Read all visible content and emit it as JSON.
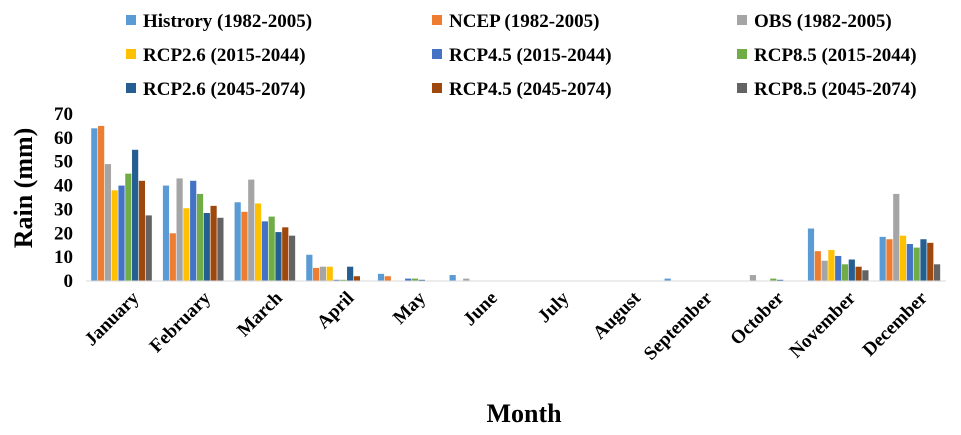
{
  "chart_data": {
    "type": "bar",
    "xlabel": "Month",
    "ylabel": "Rain (mm)",
    "ylim": [
      0,
      70
    ],
    "yticks": [
      "0",
      "10",
      "20",
      "30",
      "40",
      "50",
      "60",
      "70"
    ],
    "grid": false,
    "legend_position": "top",
    "categories": [
      "January",
      "February",
      "March",
      "April",
      "May",
      "June",
      "July",
      "August",
      "September",
      "October",
      "November",
      "December"
    ],
    "series": [
      {
        "name": "Histrory (1982-2005)",
        "color": "#5b9bd5",
        "values": [
          64,
          40,
          33,
          11,
          3,
          2.5,
          0,
          0,
          1,
          0,
          22,
          18.5
        ]
      },
      {
        "name": "NCEP (1982-2005)",
        "color": "#ed7d31",
        "values": [
          65,
          20,
          29,
          5.5,
          2,
          0,
          0,
          0,
          0,
          0,
          12.5,
          17.5
        ]
      },
      {
        "name": "OBS (1982-2005)",
        "color": "#a5a5a5",
        "values": [
          49,
          43,
          42.5,
          6,
          0,
          1,
          0,
          0,
          0,
          2.5,
          8.5,
          36.5
        ]
      },
      {
        "name": "RCP2.6 (2015-2044)",
        "color": "#ffc000",
        "values": [
          38,
          30.5,
          32.5,
          6,
          0,
          0,
          0,
          0,
          0,
          0,
          13,
          19
        ]
      },
      {
        "name": "RCP4.5 (2015-2044)",
        "color": "#4472c4",
        "values": [
          40,
          42,
          25,
          0.5,
          1,
          0,
          0,
          0,
          0,
          0,
          10.5,
          15.5
        ]
      },
      {
        "name": "RCP8.5 (2015-2044)",
        "color": "#70ad47",
        "values": [
          45,
          36.5,
          27,
          0.5,
          1,
          0,
          0,
          0,
          0,
          1,
          7,
          14
        ]
      },
      {
        "name": "RCP2.6  (2045-2074)",
        "color": "#255e91",
        "values": [
          55,
          28.5,
          20.5,
          6,
          0.5,
          0,
          0,
          0,
          0,
          0.5,
          9,
          17.5
        ]
      },
      {
        "name": "RCP4.5 (2045-2074)",
        "color": "#9e480e",
        "values": [
          42,
          31.5,
          22.5,
          2,
          0,
          0,
          0,
          0,
          0,
          0,
          6,
          16
        ]
      },
      {
        "name": "RCP8.5  (2045-2074)",
        "color": "#636363",
        "values": [
          27.5,
          26.5,
          19,
          0,
          0,
          0,
          0,
          0,
          0,
          0,
          4.5,
          7
        ]
      }
    ]
  }
}
